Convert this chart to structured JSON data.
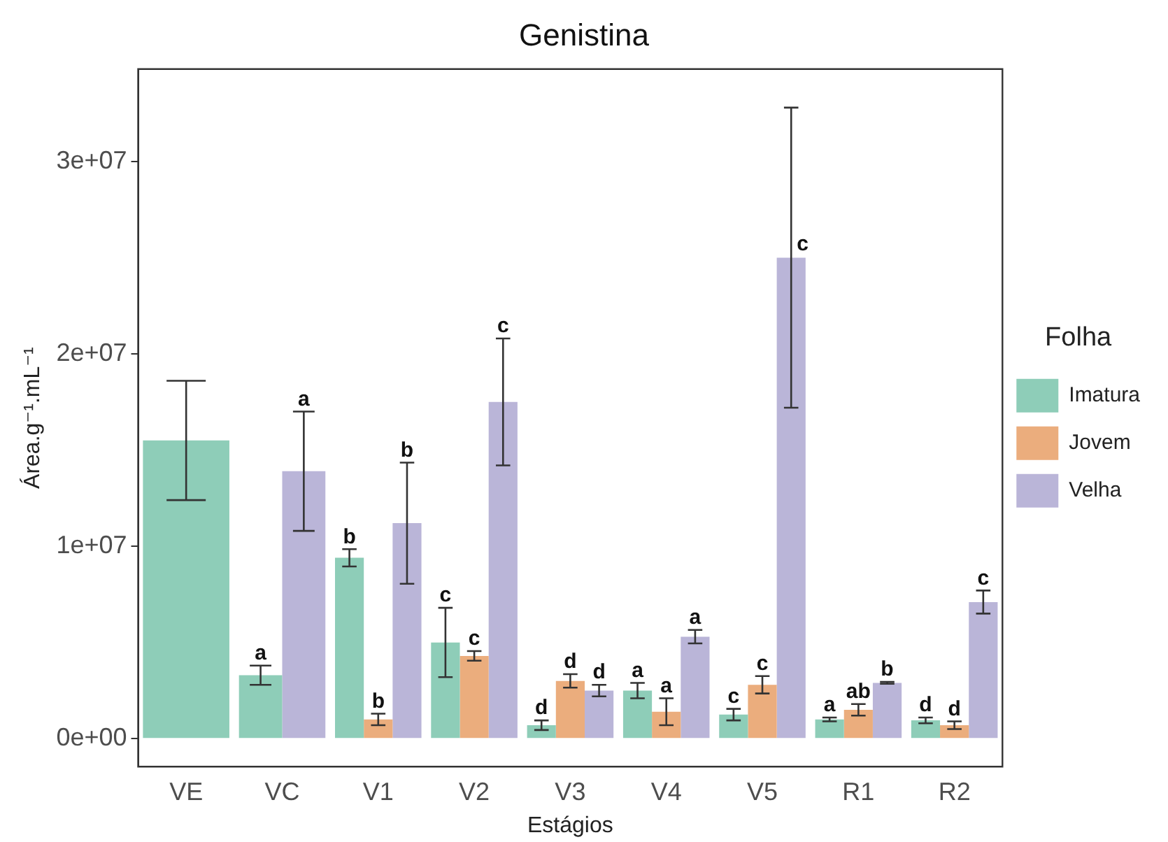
{
  "chart_data": {
    "type": "bar",
    "title": "Genistina",
    "xlabel": "Estágios",
    "ylabel": "Área.g⁻¹.mL⁻¹",
    "legend_title": "Folha",
    "legend": "right",
    "grid": false,
    "categories": [
      "VE",
      "VC",
      "V1",
      "V2",
      "V3",
      "V4",
      "V5",
      "R1",
      "R2"
    ],
    "ylim": [
      -1460000,
      34800000
    ],
    "yticks": [
      {
        "value": 0,
        "label": "0e+00"
      },
      {
        "value": 10000000,
        "label": "1e+07"
      },
      {
        "value": 20000000,
        "label": "2e+07"
      },
      {
        "value": 30000000,
        "label": "3e+07"
      }
    ],
    "series": [
      {
        "name": "Imatura",
        "color": "#8ecdb8",
        "values": [
          15500000,
          3300000,
          9400000,
          5000000,
          700000,
          2500000,
          1250000,
          1000000,
          950000
        ],
        "errors": [
          3100000,
          500000,
          450000,
          1800000,
          250000,
          400000,
          300000,
          100000,
          150000
        ],
        "value_labels": [
          null,
          "a",
          "b",
          "c",
          "d",
          "a",
          "c",
          "a",
          "d"
        ]
      },
      {
        "name": "Jovem",
        "color": "#ebad7d",
        "values": [
          null,
          null,
          1000000,
          4300000,
          3000000,
          1400000,
          2800000,
          1500000,
          700000
        ],
        "errors": [
          null,
          null,
          300000,
          250000,
          350000,
          700000,
          450000,
          300000,
          200000
        ],
        "value_labels": [
          null,
          null,
          "b",
          "c",
          "d",
          "a",
          "c",
          "ab",
          "d"
        ]
      },
      {
        "name": "Velha",
        "color": "#bab5d8",
        "values": [
          null,
          13900000,
          11200000,
          17500000,
          2500000,
          5300000,
          25000000,
          2900000,
          7100000
        ],
        "errors": [
          null,
          3100000,
          3150000,
          3300000,
          300000,
          350000,
          7800000,
          50000,
          600000
        ],
        "value_labels": [
          null,
          "a",
          "b",
          "c",
          "d",
          "a",
          "c",
          "b",
          "c"
        ]
      }
    ]
  }
}
